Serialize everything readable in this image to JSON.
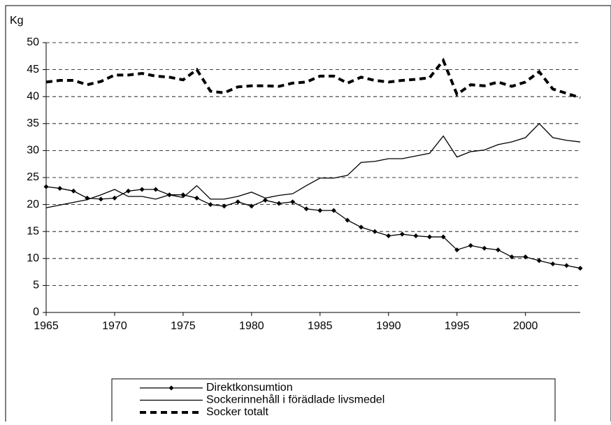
{
  "chart_data": {
    "type": "line",
    "ylabel": "Kg",
    "x": [
      1965,
      1966,
      1967,
      1968,
      1969,
      1970,
      1971,
      1972,
      1973,
      1974,
      1975,
      1976,
      1977,
      1978,
      1979,
      1980,
      1981,
      1982,
      1983,
      1984,
      1985,
      1986,
      1987,
      1988,
      1989,
      1990,
      1991,
      1992,
      1993,
      1994,
      1995,
      1996,
      1997,
      1998,
      1999,
      2000,
      2001,
      2002,
      2003,
      2004
    ],
    "series": [
      {
        "name": "Direktkonsumtion",
        "color": "#000000",
        "style": "solid",
        "marker": "diamond",
        "values": [
          23.3,
          23.0,
          22.5,
          21.2,
          21.0,
          21.2,
          22.5,
          22.8,
          22.8,
          21.8,
          21.8,
          21.2,
          20.0,
          19.7,
          20.5,
          19.7,
          20.8,
          20.2,
          20.5,
          19.2,
          18.9,
          18.9,
          17.1,
          15.8,
          15.0,
          14.2,
          14.5,
          14.2,
          14.0,
          14.0,
          11.6,
          12.4,
          11.9,
          11.6,
          10.3,
          10.3,
          9.6,
          9.0,
          8.7,
          8.2
        ]
      },
      {
        "name": "Sockerinnehåll i förädlade livsmedel",
        "color": "#000000",
        "style": "solid",
        "values": [
          19.4,
          19.9,
          20.4,
          20.9,
          21.8,
          22.8,
          21.5,
          21.5,
          21.0,
          21.8,
          21.3,
          23.5,
          21.0,
          21.0,
          21.5,
          22.3,
          21.2,
          21.7,
          22.0,
          23.5,
          24.9,
          24.9,
          25.4,
          27.8,
          28.0,
          28.5,
          28.5,
          29.0,
          29.5,
          32.7,
          28.8,
          29.8,
          30.1,
          31.1,
          31.6,
          32.4,
          35.0,
          32.4,
          31.9,
          31.6
        ]
      },
      {
        "name": "Socker totalt",
        "color": "#000000",
        "style": "dashed",
        "values": [
          42.7,
          43.0,
          43.0,
          42.2,
          42.8,
          44.0,
          44.0,
          44.3,
          43.8,
          43.6,
          43.1,
          45.0,
          41.0,
          40.7,
          41.8,
          42.0,
          42.0,
          41.9,
          42.5,
          42.7,
          43.8,
          43.8,
          42.5,
          43.6,
          43.0,
          42.7,
          43.0,
          43.2,
          43.5,
          46.7,
          40.4,
          42.2,
          42.0,
          42.7,
          41.9,
          42.7,
          44.6,
          41.4,
          40.6,
          39.8
        ]
      }
    ],
    "xlim": [
      1965,
      2004
    ],
    "xticks": [
      1965,
      1970,
      1975,
      1980,
      1985,
      1990,
      1995,
      2000
    ],
    "ylim": [
      0,
      50
    ],
    "yticks": [
      0,
      5,
      10,
      15,
      20,
      25,
      30,
      35,
      40,
      45,
      50
    ],
    "grid": true,
    "legend": "bottom"
  }
}
